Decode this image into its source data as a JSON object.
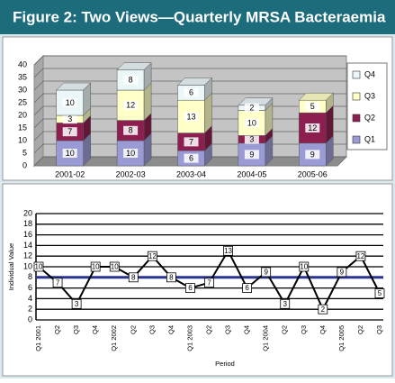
{
  "title": "Figure 2: Two Views—Quarterly MRSA Bacteraemia",
  "chart_data": [
    {
      "type": "stacked3d",
      "categories": [
        "2001-02",
        "2002-03",
        "2003-04",
        "2004-05",
        "2005-06"
      ],
      "series": [
        {
          "name": "Q1",
          "color": "#9a9ad4",
          "values": [
            10,
            10,
            6,
            9,
            9
          ]
        },
        {
          "name": "Q2",
          "color": "#8c1f50",
          "values": [
            7,
            8,
            7,
            3,
            12
          ]
        },
        {
          "name": "Q3",
          "color": "#ffffc8",
          "values": [
            3,
            12,
            13,
            10,
            5
          ]
        },
        {
          "name": "Q4",
          "color": "#eaf6f8",
          "values": [
            10,
            8,
            6,
            2,
            null
          ]
        }
      ],
      "ylim": [
        0,
        40
      ],
      "yticks": [
        0,
        5,
        10,
        15,
        20,
        25,
        30,
        35,
        40
      ],
      "grid": true
    },
    {
      "type": "line",
      "x_label": "Period",
      "y_label": "Individual Value",
      "categories": [
        "Q1 2001",
        "Q2",
        "Q3",
        "Q4",
        "Q1 2002",
        "Q2",
        "Q3",
        "Q4",
        "Q1 2003",
        "Q2",
        "Q3",
        "Q4",
        "Q1 2004",
        "Q2",
        "Q3",
        "Q4",
        "Q1 2005",
        "Q2",
        "Q3"
      ],
      "series": [
        {
          "name": "Individual Value",
          "color": "#000000",
          "values": [
            10,
            7,
            3,
            10,
            10,
            8,
            12,
            8,
            6,
            7,
            13,
            6,
            9,
            3,
            10,
            2,
            9,
            12,
            5
          ]
        }
      ],
      "mean_line": 8,
      "mean_color": "#2a3592",
      "ylim": [
        0,
        20
      ],
      "yticks": [
        0,
        2,
        4,
        6,
        8,
        10,
        12,
        14,
        16,
        18,
        20
      ],
      "grid": true
    }
  ]
}
